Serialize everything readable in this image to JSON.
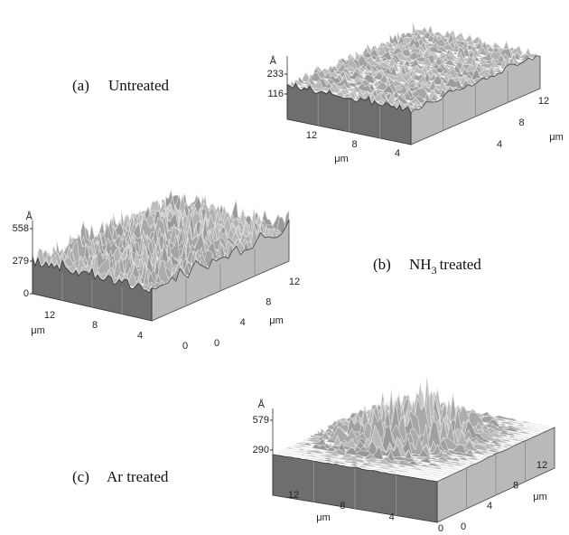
{
  "panels": [
    {
      "tag": "(a)",
      "name": "Untreated",
      "z_unit": "Å",
      "z_ticks": [
        233,
        116
      ],
      "front_axis_label": "μm",
      "front_ticks": [
        12,
        8,
        4
      ],
      "side_axis_label": "μm",
      "side_ticks": [
        4,
        8,
        12
      ]
    },
    {
      "tag": "(b)",
      "name": "NH",
      "subscript": "3",
      "name_end": "treated",
      "z_unit": "Å",
      "z_ticks": [
        558,
        279,
        0
      ],
      "front_axis_label": "μm",
      "front_ticks": [
        12,
        8,
        4,
        0
      ],
      "side_axis_label": "μm",
      "side_ticks": [
        0,
        4,
        8,
        12
      ]
    },
    {
      "tag": "(c)",
      "name": "Ar treated",
      "z_unit": "Å",
      "z_ticks": [
        579,
        290
      ],
      "front_axis_label": "μm",
      "front_ticks": [
        12,
        8,
        4,
        0
      ],
      "side_axis_label": "μm",
      "side_ticks": [
        0,
        4,
        8,
        12
      ]
    }
  ]
}
